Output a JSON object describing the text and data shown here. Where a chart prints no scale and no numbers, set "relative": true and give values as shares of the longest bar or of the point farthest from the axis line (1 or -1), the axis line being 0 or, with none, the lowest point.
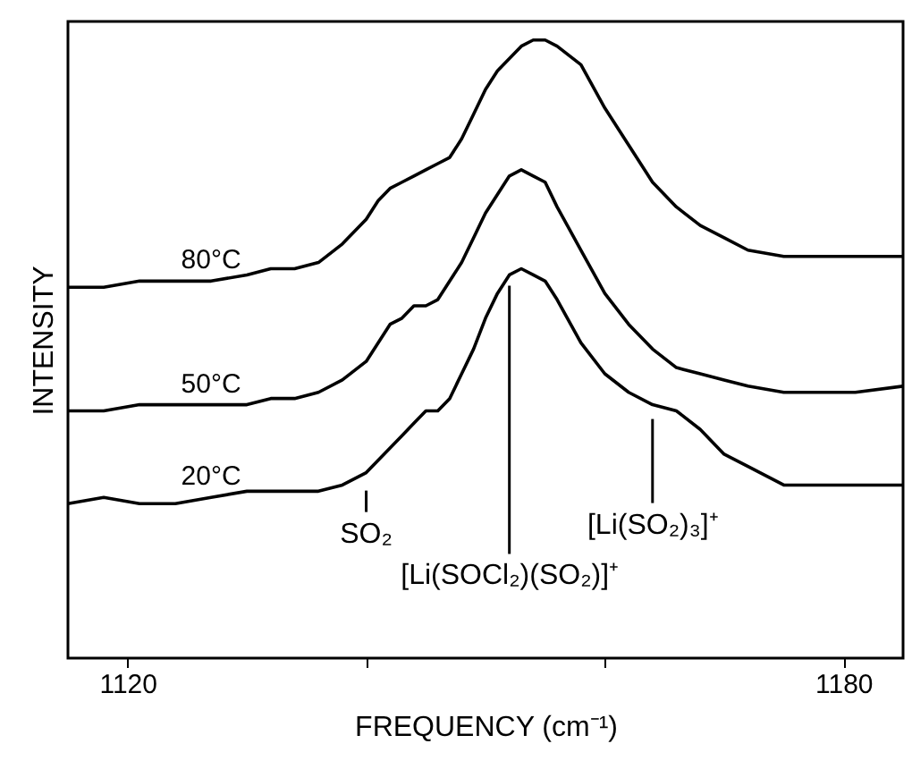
{
  "chart_data": {
    "type": "line",
    "relative": true,
    "xlabel": "FREQUENCY (cm⁻¹)",
    "ylabel": "INTENSITY",
    "x": [
      1115,
      1118,
      1121,
      1124,
      1127,
      1130,
      1132,
      1134,
      1136,
      1138,
      1140,
      1141,
      1142,
      1143,
      1144,
      1145,
      1146,
      1147,
      1148,
      1149,
      1150,
      1151,
      1152,
      1153,
      1154,
      1155,
      1156,
      1158,
      1160,
      1162,
      1164,
      1166,
      1168,
      1170,
      1172,
      1175,
      1178,
      1181,
      1185
    ],
    "xlim": [
      1115,
      1185
    ],
    "xticks": [
      1120,
      {
        "value": 1140,
        "label": null
      },
      {
        "value": 1160,
        "label": null
      },
      1180
    ],
    "grid": false,
    "line_style": "solid",
    "marker": "none",
    "series": [
      {
        "name": "80°C",
        "color": "#000000",
        "values": [
          0.6,
          0.6,
          0.61,
          0.61,
          0.61,
          0.62,
          0.63,
          0.63,
          0.64,
          0.67,
          0.71,
          0.74,
          0.76,
          0.77,
          0.78,
          0.79,
          0.8,
          0.81,
          0.84,
          0.88,
          0.92,
          0.95,
          0.97,
          0.99,
          1.0,
          1.0,
          0.99,
          0.96,
          0.89,
          0.83,
          0.77,
          0.73,
          0.7,
          0.68,
          0.66,
          0.65,
          0.65,
          0.65,
          0.65
        ]
      },
      {
        "name": "50°C",
        "color": "#000000",
        "values": [
          0.4,
          0.4,
          0.41,
          0.41,
          0.41,
          0.41,
          0.42,
          0.42,
          0.43,
          0.45,
          0.48,
          0.51,
          0.54,
          0.55,
          0.57,
          0.57,
          0.58,
          0.61,
          0.64,
          0.68,
          0.72,
          0.75,
          0.78,
          0.79,
          0.78,
          0.77,
          0.73,
          0.66,
          0.59,
          0.54,
          0.5,
          0.47,
          0.46,
          0.45,
          0.44,
          0.43,
          0.43,
          0.43,
          0.44
        ]
      },
      {
        "name": "20°C",
        "color": "#000000",
        "values": [
          0.25,
          0.26,
          0.25,
          0.25,
          0.26,
          0.27,
          0.27,
          0.27,
          0.27,
          0.28,
          0.3,
          0.32,
          0.34,
          0.36,
          0.38,
          0.4,
          0.4,
          0.42,
          0.46,
          0.5,
          0.55,
          0.59,
          0.62,
          0.63,
          0.62,
          0.61,
          0.58,
          0.51,
          0.46,
          0.43,
          0.41,
          0.4,
          0.37,
          0.33,
          0.31,
          0.28,
          0.28,
          0.28,
          0.28
        ]
      }
    ],
    "annotations": [
      {
        "text": "SO₂",
        "x": 1140,
        "y": 0.3
      },
      {
        "text": "[Li(SOCl₂)(SO₂)]⁺",
        "x": 1152,
        "y": 0.62
      },
      {
        "text": "[Li(SO₂)₃]⁺",
        "x": 1164,
        "y": 0.41
      }
    ]
  }
}
